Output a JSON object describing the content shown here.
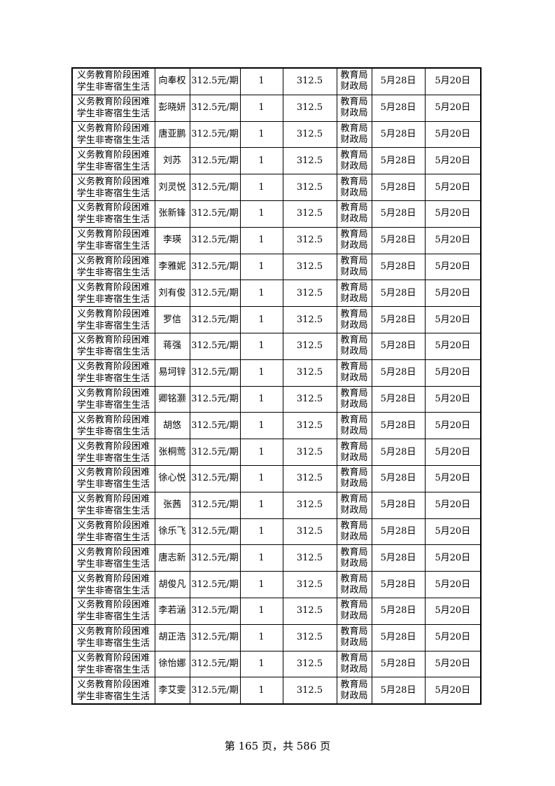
{
  "row_template": {
    "category": "义务教育阶段困难学生非寄宿生生活",
    "standard": "312.5元/期",
    "count": "1",
    "amount": "312.5",
    "department": "教育局财政局",
    "date1": "5月28日",
    "date2": "5月20日"
  },
  "names": [
    "向奉权",
    "彭晓妍",
    "唐亚鹏",
    "刘苏",
    "刘灵悦",
    "张新锋",
    "李瑛",
    "李雅妮",
    "刘有俊",
    "罗信",
    "蒋强",
    "易坷锌",
    "卿铭灏",
    "胡悠",
    "张桐莺",
    "徐心悦",
    "张茜",
    "徐乐飞",
    "唐志新",
    "胡俊凡",
    "李若涵",
    "胡正浩",
    "徐怡娜",
    "李艾雯"
  ],
  "footer": "第 165 页，共 586 页"
}
